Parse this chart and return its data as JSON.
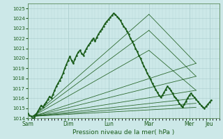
{
  "xlabel": "Pression niveau de la mer( hPa )",
  "bg_color": "#cce8e8",
  "grid_color": "#aacece",
  "line_color": "#1a5c1a",
  "ylim": [
    1014.0,
    1025.5
  ],
  "xlim": [
    0,
    228
  ],
  "yticks": [
    1014,
    1015,
    1016,
    1017,
    1018,
    1019,
    1020,
    1021,
    1022,
    1023,
    1024,
    1025
  ],
  "x_day_labels": [
    "Sam",
    "Dim",
    "Lun",
    "Mar",
    "Mer",
    "Jeu"
  ],
  "x_day_positions": [
    0,
    48,
    96,
    144,
    192,
    216
  ],
  "actual_x": [
    0,
    2,
    4,
    6,
    8,
    10,
    12,
    14,
    16,
    18,
    20,
    22,
    24,
    26,
    28,
    30,
    32,
    34,
    36,
    38,
    40,
    42,
    44,
    46,
    48,
    50,
    52,
    54,
    56,
    58,
    60,
    62,
    64,
    66,
    68,
    70,
    72,
    74,
    76,
    78,
    80,
    82,
    84,
    86,
    88,
    90,
    92,
    94,
    96,
    98,
    100,
    102,
    104,
    106,
    108,
    110,
    112,
    114,
    116,
    118,
    120,
    122,
    124,
    126,
    128,
    130,
    132,
    134,
    136,
    138,
    140,
    142,
    144,
    146,
    148,
    150,
    152,
    154,
    156,
    158,
    160,
    162,
    164,
    166,
    168,
    170,
    172,
    174,
    176,
    178,
    180,
    182,
    184,
    186,
    188,
    190,
    192,
    194,
    196,
    198,
    200,
    202,
    204,
    206,
    208,
    210,
    212,
    214,
    216,
    218
  ],
  "actual_y": [
    1014.5,
    1014.3,
    1014.2,
    1014.0,
    1014.1,
    1014.4,
    1014.7,
    1015.0,
    1015.3,
    1015.1,
    1015.4,
    1015.6,
    1015.9,
    1016.2,
    1016.0,
    1016.4,
    1016.8,
    1017.2,
    1017.5,
    1017.8,
    1018.1,
    1018.5,
    1019.0,
    1019.4,
    1019.8,
    1020.2,
    1019.8,
    1019.5,
    1019.9,
    1020.3,
    1020.6,
    1020.8,
    1020.5,
    1020.3,
    1020.7,
    1021.0,
    1021.3,
    1021.5,
    1021.8,
    1022.0,
    1021.7,
    1022.1,
    1022.4,
    1022.7,
    1022.9,
    1023.2,
    1023.5,
    1023.7,
    1023.9,
    1024.1,
    1024.3,
    1024.5,
    1024.4,
    1024.2,
    1024.0,
    1023.8,
    1023.5,
    1023.2,
    1023.0,
    1022.7,
    1022.4,
    1022.0,
    1021.7,
    1021.4,
    1021.0,
    1020.7,
    1020.3,
    1020.0,
    1019.6,
    1019.2,
    1018.9,
    1018.5,
    1018.2,
    1017.9,
    1017.5,
    1017.2,
    1016.9,
    1016.6,
    1016.3,
    1016.1,
    1016.3,
    1016.6,
    1016.9,
    1017.2,
    1017.0,
    1016.8,
    1016.5,
    1016.2,
    1016.0,
    1015.8,
    1015.5,
    1015.3,
    1015.1,
    1015.4,
    1015.7,
    1016.0,
    1016.3,
    1016.5,
    1016.3,
    1016.1,
    1015.9,
    1015.7,
    1015.5,
    1015.3,
    1015.1,
    1015.0,
    1015.2,
    1015.4,
    1015.6,
    1015.8
  ],
  "fan_lines": [
    {
      "x0": 6,
      "y0": 1014.2,
      "x1": 200,
      "y1": 1019.5
    },
    {
      "x0": 6,
      "y0": 1014.2,
      "x1": 200,
      "y1": 1018.2
    },
    {
      "x0": 6,
      "y0": 1014.2,
      "x1": 200,
      "y1": 1016.8
    },
    {
      "x0": 6,
      "y0": 1014.2,
      "x1": 200,
      "y1": 1016.0
    },
    {
      "x0": 6,
      "y0": 1014.2,
      "x1": 200,
      "y1": 1015.5
    },
    {
      "x0": 6,
      "y0": 1014.2,
      "x1": 200,
      "y1": 1015.1
    },
    {
      "x0": 6,
      "y0": 1014.2,
      "x1": 144,
      "y1": 1024.4
    },
    {
      "x0": 6,
      "y0": 1014.2,
      "x1": 144,
      "y1": 1022.8
    },
    {
      "x0": 6,
      "y0": 1014.2,
      "x1": 144,
      "y1": 1020.8
    },
    {
      "x0": 144,
      "y0": 1024.4,
      "x1": 200,
      "y1": 1019.5
    },
    {
      "x0": 144,
      "y0": 1022.8,
      "x1": 200,
      "y1": 1018.2
    },
    {
      "x0": 144,
      "y0": 1020.8,
      "x1": 200,
      "y1": 1016.8
    }
  ]
}
